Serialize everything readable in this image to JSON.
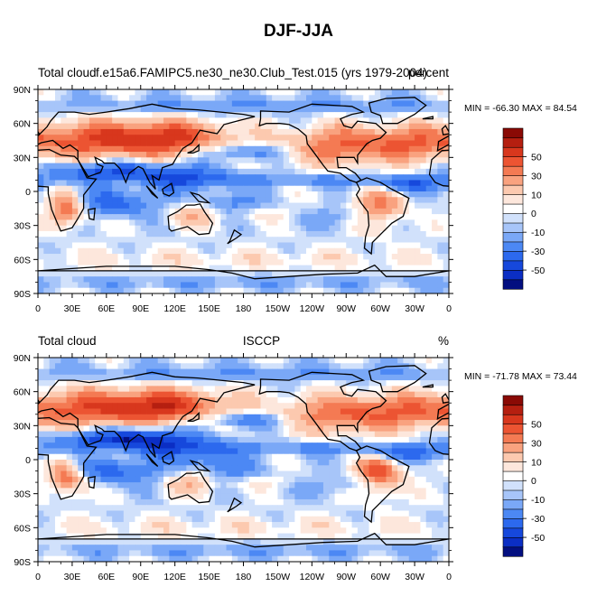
{
  "figure_title": "DJF-JJA",
  "colors": {
    "levels": [
      "#030f80",
      "#0b2ec4",
      "#1648dc",
      "#2c69ee",
      "#4c88f4",
      "#7aa8f7",
      "#a7c5f9",
      "#d1e1fb",
      "#ffffff",
      "#fde7dc",
      "#fcc9af",
      "#f9a27f",
      "#f47a53",
      "#ec5432",
      "#d8371d",
      "#b51f10",
      "#8a0a05"
    ],
    "land_outline": "#000000"
  },
  "chart_data": [
    {
      "type": "heatmap",
      "title_left": "Total cloud",
      "title_center": "f.e15a6.FAMIPC5.ne30_ne30.Club_Test.015 (yrs 1979-2004)",
      "title_right": "percent",
      "stats": "MIN = -66.30 MAX =  84.54",
      "xticks": [
        "0",
        "30E",
        "60E",
        "90E",
        "120E",
        "150E",
        "180",
        "150W",
        "120W",
        "90W",
        "60W",
        "30W",
        "0"
      ],
      "yticks": [
        "90N",
        "60N",
        "30N",
        "0",
        "30S",
        "60S",
        "90S"
      ],
      "xlim": [
        0,
        360
      ],
      "ylim": [
        -90,
        90
      ],
      "colorbar_labels": [
        "50",
        "30",
        "10",
        "0",
        "-10",
        "-30",
        "-50"
      ],
      "min": -66.3,
      "max": 84.54
    },
    {
      "type": "heatmap",
      "title_left": "Total cloud",
      "title_center": "ISCCP",
      "title_right": "%",
      "stats": "MIN = -71.78 MAX =  73.44",
      "xticks": [
        "0",
        "30E",
        "60E",
        "90E",
        "120E",
        "150E",
        "180",
        "150W",
        "120W",
        "90W",
        "60W",
        "30W",
        "0"
      ],
      "yticks": [
        "90N",
        "60N",
        "30N",
        "0",
        "30S",
        "60S",
        "90S"
      ],
      "xlim": [
        0,
        360
      ],
      "ylim": [
        -90,
        90
      ],
      "colorbar_labels": [
        "50",
        "30",
        "10",
        "0",
        "-10",
        "-30",
        "-50"
      ],
      "min": -71.78,
      "max": 73.44
    }
  ]
}
